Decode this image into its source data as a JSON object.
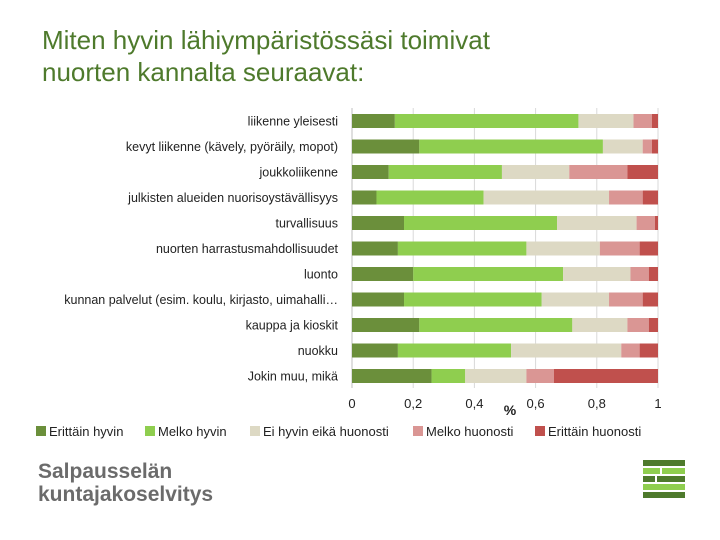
{
  "title": {
    "line1": "Miten hyvin lähiympäristössäsi toimivat",
    "line2": "nuorten kannalta seuraavat:"
  },
  "colors": {
    "title": "#4e7a2c",
    "logo_text": "#6b6b6b"
  },
  "chart_data": {
    "type": "bar",
    "orientation": "horizontal",
    "stacked": true,
    "categories": [
      "liikenne yleisesti",
      "kevyt liikenne (kävely, pyöräily, mopot)",
      "joukkoliikenne",
      "julkisten alueiden nuorisoystävällisyys",
      "turvallisuus",
      "nuorten harrastusmahdollisuudet",
      "luonto",
      "kunnan palvelut (esim. koulu, kirjasto, uimahalli…",
      "kauppa ja kioskit",
      "nuokku",
      "Jokin muu, mikä"
    ],
    "series": [
      {
        "name": "Erittäin hyvin",
        "color": "#6b8f3b",
        "values": [
          0.14,
          0.22,
          0.12,
          0.08,
          0.17,
          0.15,
          0.2,
          0.17,
          0.22,
          0.15,
          0.26
        ]
      },
      {
        "name": "Melko hyvin",
        "color": "#8fce4f",
        "values": [
          0.6,
          0.6,
          0.37,
          0.35,
          0.5,
          0.42,
          0.49,
          0.45,
          0.5,
          0.37,
          0.11
        ]
      },
      {
        "name": "Ei hyvin eikä huonosti",
        "color": "#ddd9c4",
        "values": [
          0.18,
          0.13,
          0.22,
          0.41,
          0.26,
          0.24,
          0.22,
          0.22,
          0.18,
          0.36,
          0.2
        ]
      },
      {
        "name": "Melko huonosti",
        "color": "#da9694",
        "values": [
          0.06,
          0.03,
          0.19,
          0.11,
          0.06,
          0.13,
          0.06,
          0.11,
          0.07,
          0.06,
          0.09
        ]
      },
      {
        "name": "Erittäin huonosti",
        "color": "#c0504d",
        "values": [
          0.02,
          0.02,
          0.1,
          0.05,
          0.01,
          0.06,
          0.03,
          0.05,
          0.03,
          0.06,
          0.34
        ]
      }
    ],
    "x_ticks": [
      "0",
      "0,2",
      "0,4",
      "0,6",
      "0,8",
      "1"
    ],
    "xlim": [
      0,
      1
    ],
    "xlabel": "%",
    "legend": "bottom"
  },
  "logo": {
    "line1": "Salpausselän",
    "line2": "kuntajakoselvitys"
  }
}
